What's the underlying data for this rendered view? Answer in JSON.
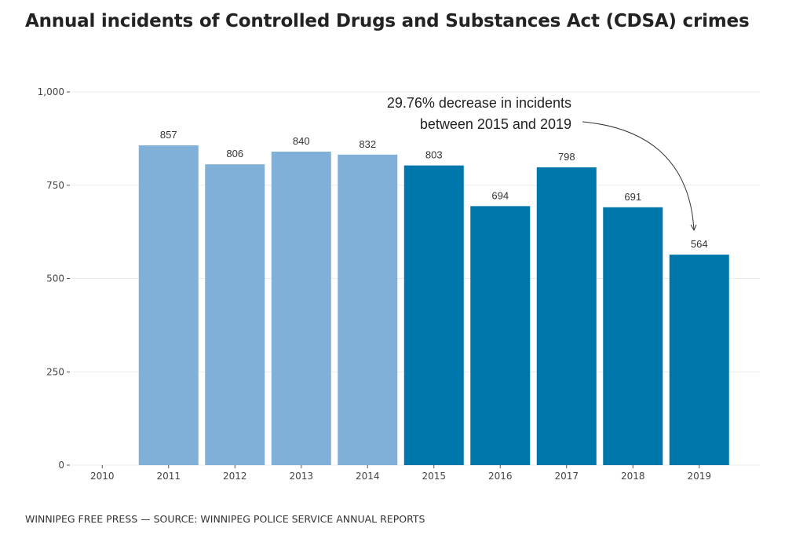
{
  "title": "Annual incidents of Controlled Drugs and Substances Act (CDSA) crimes",
  "footer": "WINNIPEG FREE PRESS — SOURCE: WINNIPEG POLICE SERVICE ANNUAL REPORTS",
  "chart_data": {
    "type": "bar",
    "title": "Annual incidents of Controlled Drugs and Substances Act (CDSA) crimes",
    "xlabel": "",
    "ylabel": "",
    "categories": [
      "2010",
      "2011",
      "2012",
      "2013",
      "2014",
      "2015",
      "2016",
      "2017",
      "2018",
      "2019"
    ],
    "values": [
      null,
      857,
      806,
      840,
      832,
      803,
      694,
      798,
      691,
      564
    ],
    "data_labels": [
      "",
      "857",
      "806",
      "840",
      "832",
      "803",
      "694",
      "798",
      "691",
      "564"
    ],
    "ylim": [
      0,
      1000
    ],
    "yticks": [
      0,
      250,
      500,
      750,
      1000
    ],
    "ytick_labels": [
      "0",
      "250",
      "500",
      "750",
      "1,000"
    ],
    "grid": true,
    "colors": {
      "before_2015": "#80afd7",
      "from_2015": "#0077aa"
    },
    "annotation": {
      "lines": [
        "29.76% decrease in incidents",
        "between 2015 and 2019"
      ],
      "points_to": "2019"
    }
  }
}
